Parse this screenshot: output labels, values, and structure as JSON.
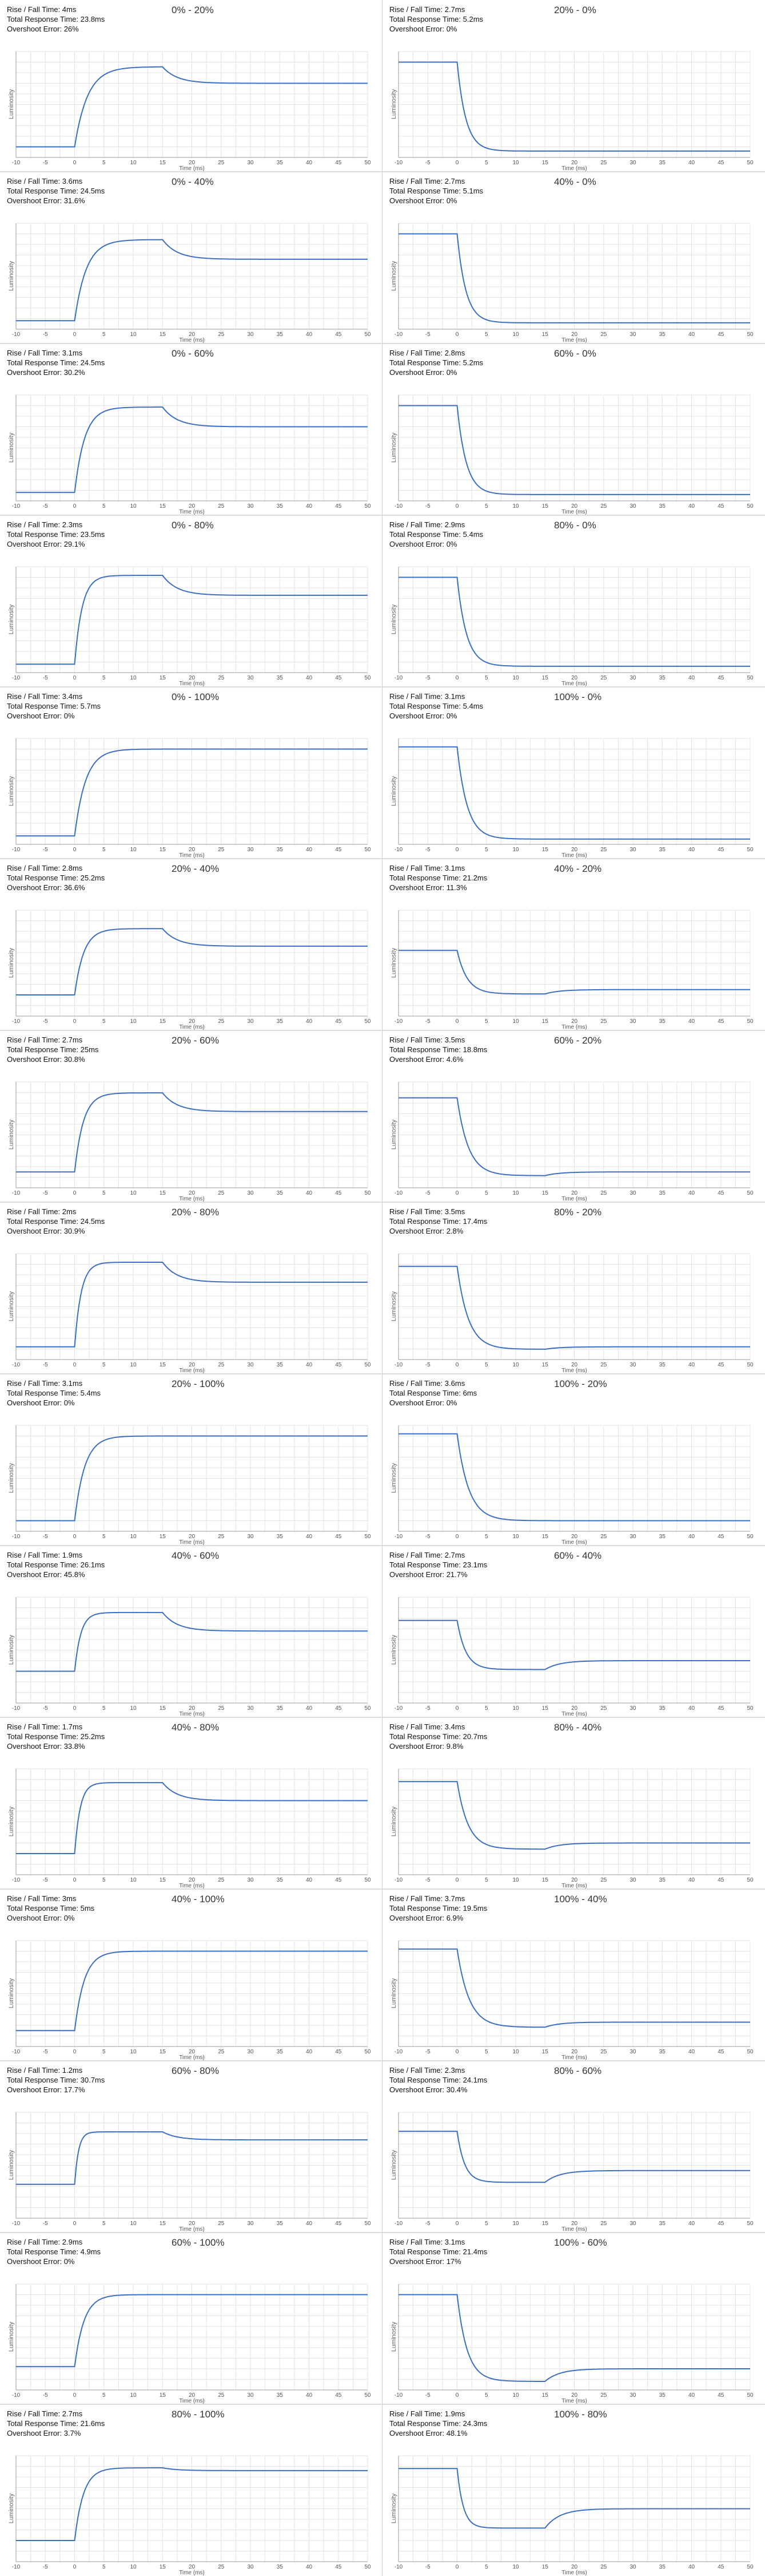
{
  "chart_data": [
    {
      "type": "line",
      "title": "0% - 20%",
      "rise_fall_time": "Rise / Fall Time: 4ms",
      "total_response_time": "Total Response Time: 23.8ms",
      "overshoot_error": "Overshoot Error: 26%",
      "kind": "rise",
      "base": 0.1,
      "settle": 0.7,
      "overshoot": 0.26,
      "rise_ms": 4,
      "xlabel": "Time (ms)",
      "ylabel": "Luminosity",
      "xlim": [
        -10,
        50
      ],
      "xticks": [
        -10,
        -5,
        0,
        5,
        10,
        15,
        20,
        25,
        30,
        35,
        40,
        45,
        50
      ],
      "grid": true
    },
    {
      "type": "line",
      "title": "20% - 0%",
      "rise_fall_time": "Rise / Fall Time: 2.7ms",
      "total_response_time": "Total Response Time: 5.2ms",
      "overshoot_error": "Overshoot Error: 0%",
      "kind": "fall",
      "base": 0.9,
      "settle": 0.06,
      "overshoot": 0,
      "rise_ms": 2.7,
      "xlabel": "Time (ms)",
      "ylabel": "Luminosity",
      "xlim": [
        -10,
        50
      ],
      "xticks": [
        -10,
        -5,
        0,
        5,
        10,
        15,
        20,
        25,
        30,
        35,
        40,
        45,
        50
      ],
      "grid": true
    },
    {
      "type": "line",
      "title": "0% - 40%",
      "rise_fall_time": "Rise / Fall Time: 3.6ms",
      "total_response_time": "Total Response Time: 24.5ms",
      "overshoot_error": "Overshoot Error: 31.6%",
      "kind": "rise",
      "base": 0.08,
      "settle": 0.66,
      "overshoot": 0.32,
      "rise_ms": 3.6,
      "xlabel": "Time (ms)",
      "ylabel": "Luminosity",
      "xlim": [
        -10,
        50
      ],
      "xticks": [
        -10,
        -5,
        0,
        5,
        10,
        15,
        20,
        25,
        30,
        35,
        40,
        45,
        50
      ],
      "grid": true
    },
    {
      "type": "line",
      "title": "40% - 0%",
      "rise_fall_time": "Rise / Fall Time: 2.7ms",
      "total_response_time": "Total Response Time: 5.1ms",
      "overshoot_error": "Overshoot Error: 0%",
      "kind": "fall",
      "base": 0.9,
      "settle": 0.06,
      "overshoot": 0,
      "rise_ms": 2.7,
      "xlabel": "Time (ms)",
      "ylabel": "Luminosity",
      "xlim": [
        -10,
        50
      ],
      "xticks": [
        -10,
        -5,
        0,
        5,
        10,
        15,
        20,
        25,
        30,
        35,
        40,
        45,
        50
      ],
      "grid": true
    },
    {
      "type": "line",
      "title": "0% - 60%",
      "rise_fall_time": "Rise / Fall Time: 3.1ms",
      "total_response_time": "Total Response Time: 24.5ms",
      "overshoot_error": "Overshoot Error: 30.2%",
      "kind": "rise",
      "base": 0.08,
      "settle": 0.7,
      "overshoot": 0.3,
      "rise_ms": 3.1,
      "xlabel": "Time (ms)",
      "ylabel": "Luminosity",
      "xlim": [
        -10,
        50
      ],
      "xticks": [
        -10,
        -5,
        0,
        5,
        10,
        15,
        20,
        25,
        30,
        35,
        40,
        45,
        50
      ],
      "grid": true
    },
    {
      "type": "line",
      "title": "60% - 0%",
      "rise_fall_time": "Rise / Fall Time: 2.8ms",
      "total_response_time": "Total Response Time: 5.2ms",
      "overshoot_error": "Overshoot Error: 0%",
      "kind": "fall",
      "base": 0.9,
      "settle": 0.06,
      "overshoot": 0,
      "rise_ms": 2.8,
      "xlabel": "Time (ms)",
      "ylabel": "Luminosity",
      "xlim": [
        -10,
        50
      ],
      "xticks": [
        -10,
        -5,
        0,
        5,
        10,
        15,
        20,
        25,
        30,
        35,
        40,
        45,
        50
      ],
      "grid": true
    },
    {
      "type": "line",
      "title": "0% - 80%",
      "rise_fall_time": "Rise / Fall Time: 2.3ms",
      "total_response_time": "Total Response Time: 23.5ms",
      "overshoot_error": "Overshoot Error: 29.1%",
      "kind": "rise",
      "base": 0.08,
      "settle": 0.73,
      "overshoot": 0.29,
      "rise_ms": 2.3,
      "xlabel": "Time (ms)",
      "ylabel": "Luminosity",
      "xlim": [
        -10,
        50
      ],
      "xticks": [
        -10,
        -5,
        0,
        5,
        10,
        15,
        20,
        25,
        30,
        35,
        40,
        45,
        50
      ],
      "grid": true
    },
    {
      "type": "line",
      "title": "80% - 0%",
      "rise_fall_time": "Rise / Fall Time: 2.9ms",
      "total_response_time": "Total Response Time: 5.4ms",
      "overshoot_error": "Overshoot Error: 0%",
      "kind": "fall",
      "base": 0.9,
      "settle": 0.06,
      "overshoot": 0,
      "rise_ms": 2.9,
      "xlabel": "Time (ms)",
      "ylabel": "Luminosity",
      "xlim": [
        -10,
        50
      ],
      "xticks": [
        -10,
        -5,
        0,
        5,
        10,
        15,
        20,
        25,
        30,
        35,
        40,
        45,
        50
      ],
      "grid": true
    },
    {
      "type": "line",
      "title": "0% - 100%",
      "rise_fall_time": "Rise / Fall Time: 3.4ms",
      "total_response_time": "Total Response Time: 5.7ms",
      "overshoot_error": "Overshoot Error: 0%",
      "kind": "rise",
      "base": 0.08,
      "settle": 0.9,
      "overshoot": 0,
      "rise_ms": 3.4,
      "xlabel": "Time (ms)",
      "ylabel": "Luminosity",
      "xlim": [
        -10,
        50
      ],
      "xticks": [
        -10,
        -5,
        0,
        5,
        10,
        15,
        20,
        25,
        30,
        35,
        40,
        45,
        50
      ],
      "grid": true
    },
    {
      "type": "line",
      "title": "100% - 0%",
      "rise_fall_time": "Rise / Fall Time: 3.1ms",
      "total_response_time": "Total Response Time: 5.4ms",
      "overshoot_error": "Overshoot Error: 0%",
      "kind": "fall",
      "base": 0.92,
      "settle": 0.05,
      "overshoot": 0,
      "rise_ms": 3.1,
      "xlabel": "Time (ms)",
      "ylabel": "Luminosity",
      "xlim": [
        -10,
        50
      ],
      "xticks": [
        -10,
        -5,
        0,
        5,
        10,
        15,
        20,
        25,
        30,
        35,
        40,
        45,
        50
      ],
      "grid": true
    },
    {
      "type": "line",
      "title": "20% - 40%",
      "rise_fall_time": "Rise / Fall Time: 2.8ms",
      "total_response_time": "Total Response Time: 25.2ms",
      "overshoot_error": "Overshoot Error: 36.6%",
      "kind": "rise",
      "base": 0.2,
      "settle": 0.66,
      "overshoot": 0.36,
      "rise_ms": 2.8,
      "xlabel": "Time (ms)",
      "ylabel": "Luminosity",
      "xlim": [
        -10,
        50
      ],
      "xticks": [
        -10,
        -5,
        0,
        5,
        10,
        15,
        20,
        25,
        30,
        35,
        40,
        45,
        50
      ],
      "grid": true
    },
    {
      "type": "line",
      "title": "40% - 20%",
      "rise_fall_time": "Rise / Fall Time: 3.1ms",
      "total_response_time": "Total Response Time: 21.2ms",
      "overshoot_error": "Overshoot Error: 11.3%",
      "kind": "fall",
      "base": 0.62,
      "settle": 0.25,
      "overshoot": 0.11,
      "rise_ms": 3.1,
      "xlabel": "Time (ms)",
      "ylabel": "Luminosity",
      "xlim": [
        -10,
        50
      ],
      "xticks": [
        -10,
        -5,
        0,
        5,
        10,
        15,
        20,
        25,
        30,
        35,
        40,
        45,
        50
      ],
      "grid": true
    },
    {
      "type": "line",
      "title": "20% - 60%",
      "rise_fall_time": "Rise / Fall Time: 2.7ms",
      "total_response_time": "Total Response Time: 25ms",
      "overshoot_error": "Overshoot Error: 30.8%",
      "kind": "rise",
      "base": 0.15,
      "settle": 0.72,
      "overshoot": 0.31,
      "rise_ms": 2.7,
      "xlabel": "Time (ms)",
      "ylabel": "Luminosity",
      "xlim": [
        -10,
        50
      ],
      "xticks": [
        -10,
        -5,
        0,
        5,
        10,
        15,
        20,
        25,
        30,
        35,
        40,
        45,
        50
      ],
      "grid": true
    },
    {
      "type": "line",
      "title": "60% - 20%",
      "rise_fall_time": "Rise / Fall Time: 3.5ms",
      "total_response_time": "Total Response Time: 18.8ms",
      "overshoot_error": "Overshoot Error: 4.6%",
      "kind": "fall",
      "base": 0.85,
      "settle": 0.15,
      "overshoot": 0.05,
      "rise_ms": 3.5,
      "xlabel": "Time (ms)",
      "ylabel": "Luminosity",
      "xlim": [
        -10,
        50
      ],
      "xticks": [
        -10,
        -5,
        0,
        5,
        10,
        15,
        20,
        25,
        30,
        35,
        40,
        45,
        50
      ],
      "grid": true
    },
    {
      "type": "line",
      "title": "20% - 80%",
      "rise_fall_time": "Rise / Fall Time: 2ms",
      "total_response_time": "Total Response Time: 24.5ms",
      "overshoot_error": "Overshoot Error: 30.9%",
      "kind": "rise",
      "base": 0.12,
      "settle": 0.73,
      "overshoot": 0.31,
      "rise_ms": 2,
      "xlabel": "Time (ms)",
      "ylabel": "Luminosity",
      "xlim": [
        -10,
        50
      ],
      "xticks": [
        -10,
        -5,
        0,
        5,
        10,
        15,
        20,
        25,
        30,
        35,
        40,
        45,
        50
      ],
      "grid": true
    },
    {
      "type": "line",
      "title": "80% - 20%",
      "rise_fall_time": "Rise / Fall Time: 3.5ms",
      "total_response_time": "Total Response Time: 17.4ms",
      "overshoot_error": "Overshoot Error: 2.8%",
      "kind": "fall",
      "base": 0.88,
      "settle": 0.12,
      "overshoot": 0.03,
      "rise_ms": 3.5,
      "xlabel": "Time (ms)",
      "ylabel": "Luminosity",
      "xlim": [
        -10,
        50
      ],
      "xticks": [
        -10,
        -5,
        0,
        5,
        10,
        15,
        20,
        25,
        30,
        35,
        40,
        45,
        50
      ],
      "grid": true
    },
    {
      "type": "line",
      "title": "20% - 100%",
      "rise_fall_time": "Rise / Fall Time: 3.1ms",
      "total_response_time": "Total Response Time: 5.4ms",
      "overshoot_error": "Overshoot Error: 0%",
      "kind": "rise",
      "base": 0.1,
      "settle": 0.9,
      "overshoot": 0,
      "rise_ms": 3.1,
      "xlabel": "Time (ms)",
      "ylabel": "Luminosity",
      "xlim": [
        -10,
        50
      ],
      "xticks": [
        -10,
        -5,
        0,
        5,
        10,
        15,
        20,
        25,
        30,
        35,
        40,
        45,
        50
      ],
      "grid": true
    },
    {
      "type": "line",
      "title": "100% - 20%",
      "rise_fall_time": "Rise / Fall Time: 3.6ms",
      "total_response_time": "Total Response Time: 6ms",
      "overshoot_error": "Overshoot Error: 0%",
      "kind": "fall",
      "base": 0.92,
      "settle": 0.1,
      "overshoot": 0,
      "rise_ms": 3.6,
      "xlabel": "Time (ms)",
      "ylabel": "Luminosity",
      "xlim": [
        -10,
        50
      ],
      "xticks": [
        -10,
        -5,
        0,
        5,
        10,
        15,
        20,
        25,
        30,
        35,
        40,
        45,
        50
      ],
      "grid": true
    },
    {
      "type": "line",
      "title": "40% - 60%",
      "rise_fall_time": "Rise / Fall Time: 1.9ms",
      "total_response_time": "Total Response Time: 26.1ms",
      "overshoot_error": "Overshoot Error: 45.8%",
      "kind": "rise",
      "base": 0.3,
      "settle": 0.68,
      "overshoot": 0.46,
      "rise_ms": 1.9,
      "xlabel": "Time (ms)",
      "ylabel": "Luminosity",
      "xlim": [
        -10,
        50
      ],
      "xticks": [
        -10,
        -5,
        0,
        5,
        10,
        15,
        20,
        25,
        30,
        35,
        40,
        45,
        50
      ],
      "grid": true
    },
    {
      "type": "line",
      "title": "60% - 40%",
      "rise_fall_time": "Rise / Fall Time: 2.7ms",
      "total_response_time": "Total Response Time: 23.1ms",
      "overshoot_error": "Overshoot Error: 21.7%",
      "kind": "fall",
      "base": 0.78,
      "settle": 0.4,
      "overshoot": 0.22,
      "rise_ms": 2.7,
      "xlabel": "Time (ms)",
      "ylabel": "Luminosity",
      "xlim": [
        -10,
        50
      ],
      "xticks": [
        -10,
        -5,
        0,
        5,
        10,
        15,
        20,
        25,
        30,
        35,
        40,
        45,
        50
      ],
      "grid": true
    },
    {
      "type": "line",
      "title": "40% - 80%",
      "rise_fall_time": "Rise / Fall Time: 1.7ms",
      "total_response_time": "Total Response Time: 25.2ms",
      "overshoot_error": "Overshoot Error: 33.8%",
      "kind": "rise",
      "base": 0.2,
      "settle": 0.7,
      "overshoot": 0.34,
      "rise_ms": 1.7,
      "xlabel": "Time (ms)",
      "ylabel": "Luminosity",
      "xlim": [
        -10,
        50
      ],
      "xticks": [
        -10,
        -5,
        0,
        5,
        10,
        15,
        20,
        25,
        30,
        35,
        40,
        45,
        50
      ],
      "grid": true
    },
    {
      "type": "line",
      "title": "80% - 40%",
      "rise_fall_time": "Rise / Fall Time: 3.4ms",
      "total_response_time": "Total Response Time: 20.7ms",
      "overshoot_error": "Overshoot Error: 9.8%",
      "kind": "fall",
      "base": 0.88,
      "settle": 0.3,
      "overshoot": 0.1,
      "rise_ms": 3.4,
      "xlabel": "Time (ms)",
      "ylabel": "Luminosity",
      "xlim": [
        -10,
        50
      ],
      "xticks": [
        -10,
        -5,
        0,
        5,
        10,
        15,
        20,
        25,
        30,
        35,
        40,
        45,
        50
      ],
      "grid": true
    },
    {
      "type": "line",
      "title": "40% - 100%",
      "rise_fall_time": "Rise / Fall Time: 3ms",
      "total_response_time": "Total Response Time: 5ms",
      "overshoot_error": "Overshoot Error: 0%",
      "kind": "rise",
      "base": 0.15,
      "settle": 0.9,
      "overshoot": 0,
      "rise_ms": 3,
      "xlabel": "Time (ms)",
      "ylabel": "Luminosity",
      "xlim": [
        -10,
        50
      ],
      "xticks": [
        -10,
        -5,
        0,
        5,
        10,
        15,
        20,
        25,
        30,
        35,
        40,
        45,
        50
      ],
      "grid": true
    },
    {
      "type": "line",
      "title": "100% - 40%",
      "rise_fall_time": "Rise / Fall Time: 3.7ms",
      "total_response_time": "Total Response Time: 19.5ms",
      "overshoot_error": "Overshoot Error: 6.9%",
      "kind": "fall",
      "base": 0.92,
      "settle": 0.23,
      "overshoot": 0.07,
      "rise_ms": 3.7,
      "xlabel": "Time (ms)",
      "ylabel": "Luminosity",
      "xlim": [
        -10,
        50
      ],
      "xticks": [
        -10,
        -5,
        0,
        5,
        10,
        15,
        20,
        25,
        30,
        35,
        40,
        45,
        50
      ],
      "grid": true
    },
    {
      "type": "line",
      "title": "60% - 80%",
      "rise_fall_time": "Rise / Fall Time: 1.2ms",
      "total_response_time": "Total Response Time: 30.7ms",
      "overshoot_error": "Overshoot Error: 17.7%",
      "kind": "rise",
      "base": 0.32,
      "settle": 0.74,
      "overshoot": 0.18,
      "rise_ms": 1.2,
      "xlabel": "Time (ms)",
      "ylabel": "Luminosity",
      "xlim": [
        -10,
        50
      ],
      "xticks": [
        -10,
        -5,
        0,
        5,
        10,
        15,
        20,
        25,
        30,
        35,
        40,
        45,
        50
      ],
      "grid": true
    },
    {
      "type": "line",
      "title": "80% - 60%",
      "rise_fall_time": "Rise / Fall Time: 2.3ms",
      "total_response_time": "Total Response Time: 24.1ms",
      "overshoot_error": "Overshoot Error: 30.4%",
      "kind": "fall",
      "base": 0.82,
      "settle": 0.45,
      "overshoot": 0.3,
      "rise_ms": 2.3,
      "xlabel": "Time (ms)",
      "ylabel": "Luminosity",
      "xlim": [
        -10,
        50
      ],
      "xticks": [
        -10,
        -5,
        0,
        5,
        10,
        15,
        20,
        25,
        30,
        35,
        40,
        45,
        50
      ],
      "grid": true
    },
    {
      "type": "line",
      "title": "60% - 100%",
      "rise_fall_time": "Rise / Fall Time: 2.9ms",
      "total_response_time": "Total Response Time: 4.9ms",
      "overshoot_error": "Overshoot Error: 0%",
      "kind": "rise",
      "base": 0.22,
      "settle": 0.9,
      "overshoot": 0,
      "rise_ms": 2.9,
      "xlabel": "Time (ms)",
      "ylabel": "Luminosity",
      "xlim": [
        -10,
        50
      ],
      "xticks": [
        -10,
        -5,
        0,
        5,
        10,
        15,
        20,
        25,
        30,
        35,
        40,
        45,
        50
      ],
      "grid": true
    },
    {
      "type": "line",
      "title": "100% - 60%",
      "rise_fall_time": "Rise / Fall Time: 3.1ms",
      "total_response_time": "Total Response Time: 21.4ms",
      "overshoot_error": "Overshoot Error: 17%",
      "kind": "fall",
      "base": 0.9,
      "settle": 0.2,
      "overshoot": 0.17,
      "rise_ms": 3.1,
      "xlabel": "Time (ms)",
      "ylabel": "Luminosity",
      "xlim": [
        -10,
        50
      ],
      "xticks": [
        -10,
        -5,
        0,
        5,
        10,
        15,
        20,
        25,
        30,
        35,
        40,
        45,
        50
      ],
      "grid": true
    },
    {
      "type": "line",
      "title": "80% - 100%",
      "rise_fall_time": "Rise / Fall Time: 2.7ms",
      "total_response_time": "Total Response Time: 21.6ms",
      "overshoot_error": "Overshoot Error: 3.7%",
      "kind": "rise",
      "base": 0.2,
      "settle": 0.86,
      "overshoot": 0.04,
      "rise_ms": 2.7,
      "xlabel": "Time (ms)",
      "ylabel": "Luminosity",
      "xlim": [
        -10,
        50
      ],
      "xticks": [
        -10,
        -5,
        0,
        5,
        10,
        15,
        20,
        25,
        30,
        35,
        40,
        45,
        50
      ],
      "grid": true
    },
    {
      "type": "line",
      "title": "100% - 80%",
      "rise_fall_time": "Rise / Fall Time: 1.9ms",
      "total_response_time": "Total Response Time: 24.3ms",
      "overshoot_error": "Overshoot Error: 48.1%",
      "kind": "fall",
      "base": 0.88,
      "settle": 0.5,
      "overshoot": 0.48,
      "rise_ms": 1.9,
      "xlabel": "Time (ms)",
      "ylabel": "Luminosity",
      "xlim": [
        -10,
        50
      ],
      "xticks": [
        -10,
        -5,
        0,
        5,
        10,
        15,
        20,
        25,
        30,
        35,
        40,
        45,
        50
      ],
      "grid": true
    }
  ],
  "style": {
    "line_color": "#3c6fc0",
    "grid_color": "#e3e3e3",
    "axis_color": "#999999",
    "text_color": "#333333"
  }
}
